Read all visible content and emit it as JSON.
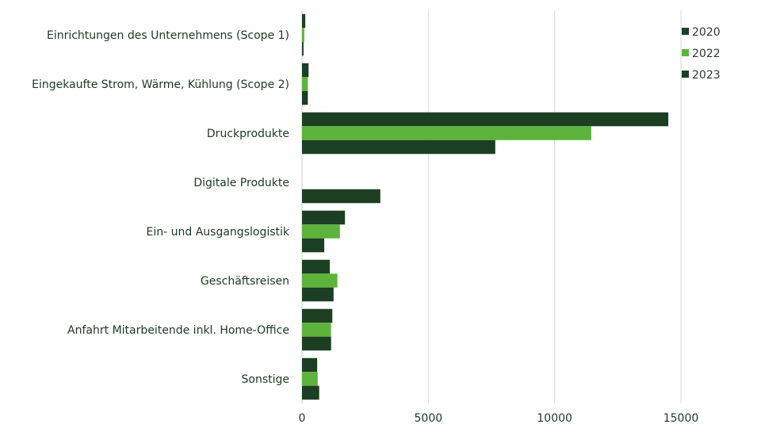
{
  "chart_data": {
    "type": "bar",
    "orientation": "horizontal",
    "categories": [
      "Einrichtungen des Unternehmens (Scope 1)",
      "Eingekaufte Strom, Wärme, Kühlung (Scope 2)",
      "Druckprodukte",
      "Digitale Produkte",
      "Ein- und Ausgangslogistik",
      "Geschäftsreisen",
      "Anfahrt Mitarbeitende inkl. Home-Office",
      "Sonstige"
    ],
    "series": [
      {
        "name": "2020",
        "color": "#1c3f24",
        "values": [
          130,
          260,
          14500,
          0,
          1700,
          1100,
          1200,
          600
        ]
      },
      {
        "name": "2022",
        "color": "#5db33c",
        "values": [
          90,
          230,
          11450,
          0,
          1500,
          1400,
          1150,
          620
        ]
      },
      {
        "name": "2023",
        "color": "#1c3f24",
        "values": [
          60,
          230,
          7650,
          3100,
          880,
          1250,
          1150,
          680
        ]
      }
    ],
    "xlim": [
      0,
      15000
    ],
    "xticks": [
      0,
      5000,
      10000,
      15000
    ],
    "grid": "vertical",
    "legend": "top-right",
    "title": "",
    "xlabel": "",
    "ylabel": ""
  }
}
